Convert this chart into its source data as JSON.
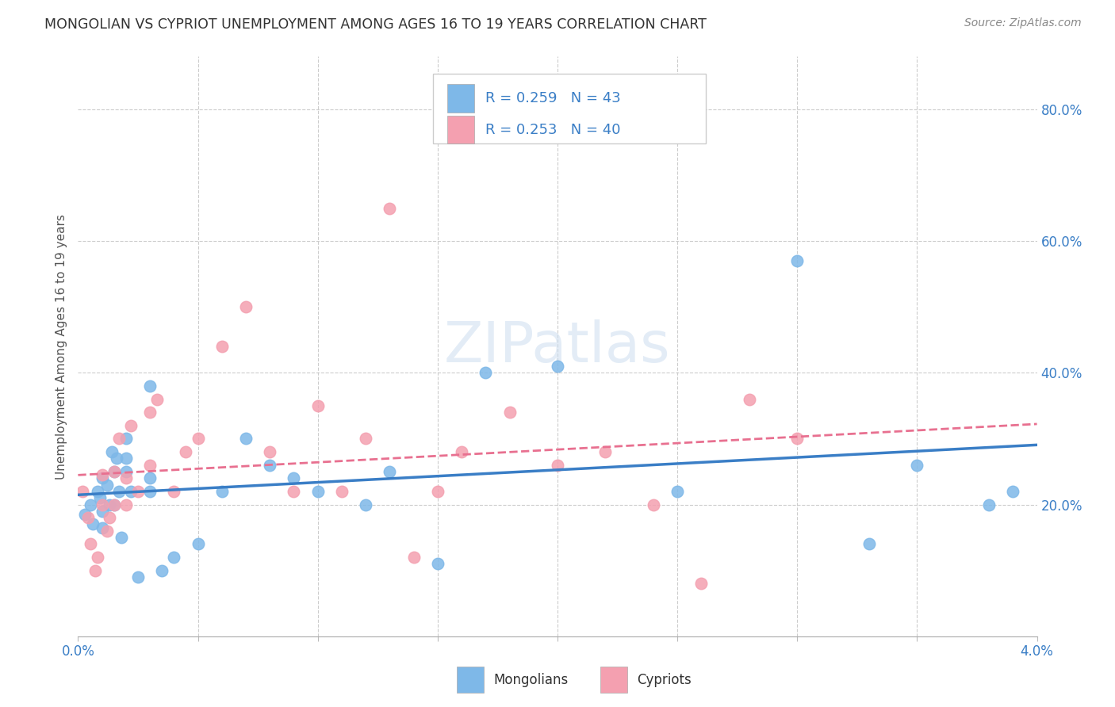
{
  "title": "MONGOLIAN VS CYPRIOT UNEMPLOYMENT AMONG AGES 16 TO 19 YEARS CORRELATION CHART",
  "source": "Source: ZipAtlas.com",
  "ylabel": "Unemployment Among Ages 16 to 19 years",
  "xlim": [
    0.0,
    0.04
  ],
  "ylim": [
    0.0,
    0.88
  ],
  "mongolians_R": 0.259,
  "mongolians_N": 43,
  "cypriots_R": 0.253,
  "cypriots_N": 40,
  "mongolian_color": "#7EB8E8",
  "cypriot_color": "#F4A0B0",
  "mongolian_line_color": "#3A7EC6",
  "cypriot_line_color": "#E87090",
  "watermark": "ZIPatlas",
  "background_color": "#ffffff",
  "mongolians_x": [
    0.0003,
    0.0005,
    0.0006,
    0.0008,
    0.0009,
    0.001,
    0.001,
    0.001,
    0.0012,
    0.0013,
    0.0014,
    0.0015,
    0.0015,
    0.0016,
    0.0017,
    0.0018,
    0.002,
    0.002,
    0.002,
    0.0022,
    0.0025,
    0.003,
    0.003,
    0.003,
    0.0035,
    0.004,
    0.005,
    0.006,
    0.007,
    0.008,
    0.009,
    0.01,
    0.012,
    0.013,
    0.015,
    0.017,
    0.02,
    0.025,
    0.03,
    0.033,
    0.035,
    0.038,
    0.039
  ],
  "mongolians_y": [
    0.185,
    0.2,
    0.17,
    0.22,
    0.21,
    0.24,
    0.19,
    0.165,
    0.23,
    0.2,
    0.28,
    0.2,
    0.25,
    0.27,
    0.22,
    0.15,
    0.25,
    0.27,
    0.3,
    0.22,
    0.09,
    0.38,
    0.22,
    0.24,
    0.1,
    0.12,
    0.14,
    0.22,
    0.3,
    0.26,
    0.24,
    0.22,
    0.2,
    0.25,
    0.11,
    0.4,
    0.41,
    0.22,
    0.57,
    0.14,
    0.26,
    0.2,
    0.22
  ],
  "cypriots_x": [
    0.0002,
    0.0004,
    0.0005,
    0.0007,
    0.0008,
    0.001,
    0.001,
    0.0012,
    0.0013,
    0.0015,
    0.0015,
    0.0017,
    0.002,
    0.002,
    0.0022,
    0.0025,
    0.003,
    0.003,
    0.0033,
    0.004,
    0.0045,
    0.005,
    0.006,
    0.007,
    0.008,
    0.009,
    0.01,
    0.011,
    0.012,
    0.013,
    0.014,
    0.015,
    0.016,
    0.018,
    0.02,
    0.022,
    0.024,
    0.026,
    0.028,
    0.03
  ],
  "cypriots_y": [
    0.22,
    0.18,
    0.14,
    0.1,
    0.12,
    0.2,
    0.245,
    0.16,
    0.18,
    0.2,
    0.25,
    0.3,
    0.2,
    0.24,
    0.32,
    0.22,
    0.34,
    0.26,
    0.36,
    0.22,
    0.28,
    0.3,
    0.44,
    0.5,
    0.28,
    0.22,
    0.35,
    0.22,
    0.3,
    0.65,
    0.12,
    0.22,
    0.28,
    0.34,
    0.26,
    0.28,
    0.2,
    0.08,
    0.36,
    0.3
  ]
}
